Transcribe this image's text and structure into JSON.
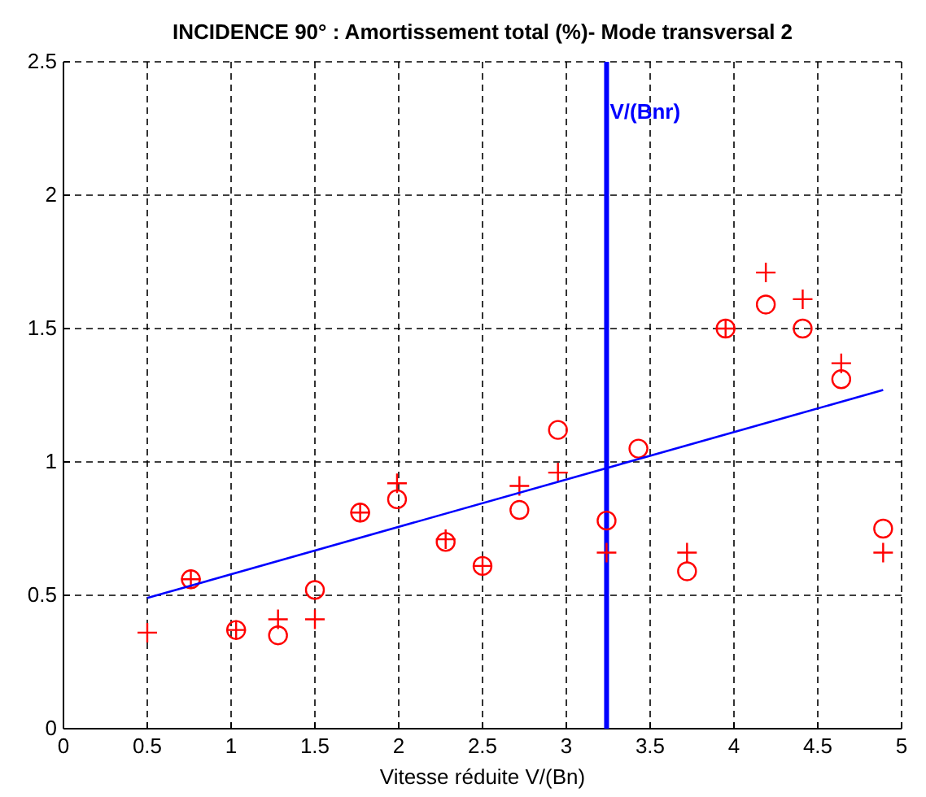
{
  "chart_data": {
    "type": "scatter",
    "title": "INCIDENCE 90° : Amortissement total (%)- Mode transversal 2",
    "xlabel": "Vitesse réduite V/(Bn)",
    "xlim": [
      0,
      5
    ],
    "xticks": [
      0,
      0.5,
      1,
      1.5,
      2,
      2.5,
      3,
      3.5,
      4,
      4.5,
      5
    ],
    "ylim": [
      0,
      2.5
    ],
    "yticks": [
      0,
      0.5,
      1,
      1.5,
      2,
      2.5
    ],
    "grid": true,
    "series": [
      {
        "marker": "cross",
        "color": "#ff0000",
        "x": [
          0.5,
          0.76,
          1.03,
          1.28,
          1.5,
          1.77,
          1.99,
          2.28,
          2.5,
          2.72,
          2.95,
          3.24,
          3.72,
          3.95,
          4.19,
          4.41,
          4.64,
          4.89
        ],
        "values": [
          0.36,
          0.56,
          0.37,
          0.41,
          0.41,
          0.81,
          0.92,
          0.71,
          0.61,
          0.91,
          0.96,
          0.66,
          0.66,
          1.5,
          1.71,
          1.61,
          1.37,
          0.66
        ]
      },
      {
        "marker": "circle",
        "color": "#ff0000",
        "x": [
          0.76,
          1.03,
          1.28,
          1.5,
          1.77,
          1.99,
          2.28,
          2.5,
          2.72,
          2.95,
          3.24,
          3.43,
          3.72,
          3.95,
          4.19,
          4.41,
          4.64,
          4.89
        ],
        "values": [
          0.56,
          0.37,
          0.35,
          0.52,
          0.81,
          0.86,
          0.7,
          0.61,
          0.82,
          1.12,
          0.78,
          1.05,
          0.59,
          1.5,
          1.59,
          1.5,
          1.31,
          0.75
        ]
      },
      {
        "type": "line",
        "color": "#0000ff",
        "x": [
          0.5,
          4.89
        ],
        "values": [
          0.49,
          1.27
        ]
      }
    ],
    "ref_lines": [
      {
        "axis": "x",
        "value": 3.24,
        "label": "V/(Bnr)",
        "color": "#0000ff"
      }
    ]
  }
}
